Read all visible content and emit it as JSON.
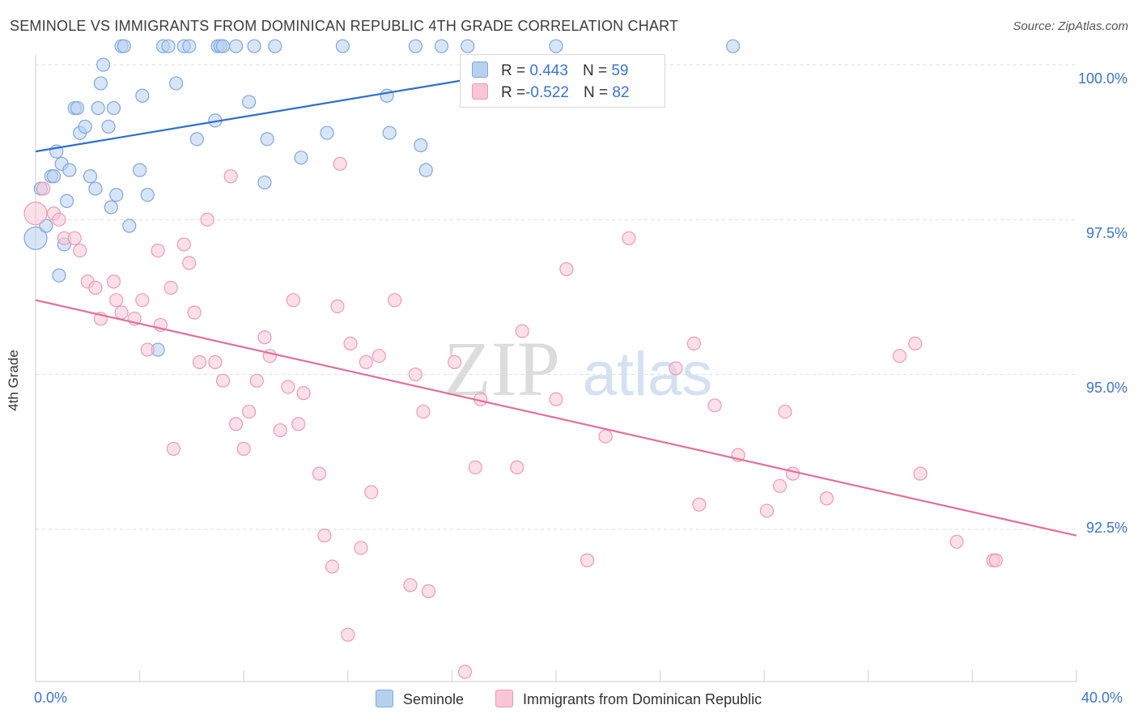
{
  "title": "SEMINOLE VS IMMIGRANTS FROM DOMINICAN REPUBLIC 4TH GRADE CORRELATION CHART",
  "source": "Source: ZipAtlas.com",
  "watermark": {
    "zip": "ZIP",
    "atlas": "atlas"
  },
  "legend": {
    "seminole": {
      "r_label": "R =",
      "r_value": " 0.443",
      "n_label": "N =",
      "n_value": "59"
    },
    "dominican": {
      "r_label": "R =",
      "r_value": "-0.522",
      "n_label": "N =",
      "n_value": "82"
    }
  },
  "colors": {
    "seminole_fill": "#b8d0f0",
    "seminole_stroke": "#7ea7df",
    "seminole_line": "#2f6fcb",
    "dominican_fill": "#f8c6d6",
    "dominican_stroke": "#ec9ab6",
    "dominican_line": "#e36f9a",
    "tick_label": "#3b75c9",
    "grid": "#dddddd"
  },
  "chart_data": {
    "type": "scatter",
    "xlabel": "",
    "ylabel": "4th Grade",
    "xlim": [
      0,
      40
    ],
    "ylim": [
      90.0,
      100.25
    ],
    "x_tick_labels": [
      "0.0%",
      "40.0%"
    ],
    "y_ticks": [
      92.5,
      95.0,
      97.5,
      100.0
    ],
    "y_tick_labels": [
      "92.5%",
      "95.0%",
      "97.5%",
      "100.0%"
    ],
    "grid": "horizontal dashed",
    "legend_placement": "bottom-center",
    "series": [
      {
        "name": "Seminole",
        "color": "#b8d0f0",
        "trend": {
          "x": [
            0,
            20
          ],
          "y": [
            98.6,
            100.0
          ]
        },
        "points": [
          {
            "x": 0.0,
            "y": 97.2,
            "big": true
          },
          {
            "x": 0.2,
            "y": 98.0
          },
          {
            "x": 0.4,
            "y": 97.4
          },
          {
            "x": 0.6,
            "y": 98.2
          },
          {
            "x": 0.7,
            "y": 98.2
          },
          {
            "x": 0.8,
            "y": 98.6
          },
          {
            "x": 0.9,
            "y": 96.6
          },
          {
            "x": 1.0,
            "y": 98.4
          },
          {
            "x": 1.1,
            "y": 97.1
          },
          {
            "x": 1.2,
            "y": 97.8
          },
          {
            "x": 1.3,
            "y": 98.3
          },
          {
            "x": 1.5,
            "y": 99.3
          },
          {
            "x": 1.6,
            "y": 99.3
          },
          {
            "x": 1.7,
            "y": 98.9
          },
          {
            "x": 1.9,
            "y": 99.0
          },
          {
            "x": 2.1,
            "y": 98.2
          },
          {
            "x": 2.3,
            "y": 98.0
          },
          {
            "x": 2.4,
            "y": 99.3
          },
          {
            "x": 2.5,
            "y": 99.7
          },
          {
            "x": 2.6,
            "y": 100.0
          },
          {
            "x": 2.8,
            "y": 99.0
          },
          {
            "x": 2.9,
            "y": 97.7
          },
          {
            "x": 3.0,
            "y": 99.3
          },
          {
            "x": 3.1,
            "y": 97.9
          },
          {
            "x": 3.3,
            "y": 100.3
          },
          {
            "x": 3.4,
            "y": 100.3
          },
          {
            "x": 3.6,
            "y": 97.4
          },
          {
            "x": 4.0,
            "y": 98.3
          },
          {
            "x": 4.1,
            "y": 99.5
          },
          {
            "x": 4.3,
            "y": 97.9
          },
          {
            "x": 4.7,
            "y": 95.4
          },
          {
            "x": 4.9,
            "y": 100.3
          },
          {
            "x": 5.1,
            "y": 100.3
          },
          {
            "x": 5.4,
            "y": 99.7
          },
          {
            "x": 5.7,
            "y": 100.3
          },
          {
            "x": 5.9,
            "y": 100.3
          },
          {
            "x": 6.2,
            "y": 98.8
          },
          {
            "x": 6.9,
            "y": 99.1
          },
          {
            "x": 7.0,
            "y": 100.3
          },
          {
            "x": 7.1,
            "y": 100.3
          },
          {
            "x": 7.2,
            "y": 100.3
          },
          {
            "x": 7.7,
            "y": 100.3
          },
          {
            "x": 8.2,
            "y": 99.4
          },
          {
            "x": 8.4,
            "y": 100.3
          },
          {
            "x": 8.8,
            "y": 98.1
          },
          {
            "x": 8.9,
            "y": 98.8
          },
          {
            "x": 9.2,
            "y": 100.3
          },
          {
            "x": 10.2,
            "y": 98.5
          },
          {
            "x": 11.2,
            "y": 98.9
          },
          {
            "x": 11.8,
            "y": 100.3
          },
          {
            "x": 13.5,
            "y": 99.5
          },
          {
            "x": 13.6,
            "y": 98.9
          },
          {
            "x": 14.6,
            "y": 100.3
          },
          {
            "x": 14.8,
            "y": 98.7
          },
          {
            "x": 15.0,
            "y": 98.3
          },
          {
            "x": 15.6,
            "y": 100.3
          },
          {
            "x": 16.6,
            "y": 100.3
          },
          {
            "x": 20.0,
            "y": 100.3
          },
          {
            "x": 26.8,
            "y": 100.3
          }
        ]
      },
      {
        "name": "Immigrants from Dominican Republic",
        "color": "#f8c6d6",
        "trend": {
          "x": [
            0,
            40
          ],
          "y": [
            96.2,
            92.4
          ]
        },
        "points": [
          {
            "x": 0.0,
            "y": 97.6,
            "big": true
          },
          {
            "x": 0.3,
            "y": 98.0
          },
          {
            "x": 0.7,
            "y": 97.6
          },
          {
            "x": 0.9,
            "y": 97.5
          },
          {
            "x": 1.1,
            "y": 97.2
          },
          {
            "x": 1.5,
            "y": 97.2
          },
          {
            "x": 1.7,
            "y": 97.0
          },
          {
            "x": 2.0,
            "y": 96.5
          },
          {
            "x": 2.3,
            "y": 96.4
          },
          {
            "x": 2.5,
            "y": 95.9
          },
          {
            "x": 3.0,
            "y": 96.5
          },
          {
            "x": 3.1,
            "y": 96.2
          },
          {
            "x": 3.3,
            "y": 96.0
          },
          {
            "x": 3.8,
            "y": 95.9
          },
          {
            "x": 4.1,
            "y": 96.2
          },
          {
            "x": 4.3,
            "y": 95.4
          },
          {
            "x": 4.7,
            "y": 97.0
          },
          {
            "x": 4.8,
            "y": 95.8
          },
          {
            "x": 5.2,
            "y": 96.4
          },
          {
            "x": 5.3,
            "y": 93.8
          },
          {
            "x": 5.7,
            "y": 97.1
          },
          {
            "x": 5.9,
            "y": 96.8
          },
          {
            "x": 6.1,
            "y": 96.0
          },
          {
            "x": 6.3,
            "y": 95.2
          },
          {
            "x": 6.6,
            "y": 97.5
          },
          {
            "x": 6.9,
            "y": 95.2
          },
          {
            "x": 7.2,
            "y": 94.9
          },
          {
            "x": 7.5,
            "y": 98.2
          },
          {
            "x": 7.7,
            "y": 94.2
          },
          {
            "x": 8.0,
            "y": 93.8
          },
          {
            "x": 8.2,
            "y": 94.4
          },
          {
            "x": 8.5,
            "y": 94.9
          },
          {
            "x": 8.8,
            "y": 95.6
          },
          {
            "x": 9.0,
            "y": 95.3
          },
          {
            "x": 9.4,
            "y": 94.1
          },
          {
            "x": 9.7,
            "y": 94.8
          },
          {
            "x": 9.9,
            "y": 96.2
          },
          {
            "x": 10.1,
            "y": 94.2
          },
          {
            "x": 10.3,
            "y": 94.7
          },
          {
            "x": 10.9,
            "y": 93.4
          },
          {
            "x": 11.1,
            "y": 92.4
          },
          {
            "x": 11.4,
            "y": 91.9
          },
          {
            "x": 11.6,
            "y": 96.1
          },
          {
            "x": 11.7,
            "y": 98.4
          },
          {
            "x": 12.0,
            "y": 90.8
          },
          {
            "x": 12.1,
            "y": 95.5
          },
          {
            "x": 12.5,
            "y": 92.2
          },
          {
            "x": 12.7,
            "y": 95.2
          },
          {
            "x": 12.9,
            "y": 93.1
          },
          {
            "x": 13.2,
            "y": 95.3
          },
          {
            "x": 13.8,
            "y": 96.2
          },
          {
            "x": 14.4,
            "y": 91.6
          },
          {
            "x": 14.6,
            "y": 95.0
          },
          {
            "x": 14.9,
            "y": 94.4
          },
          {
            "x": 15.1,
            "y": 91.5
          },
          {
            "x": 16.1,
            "y": 95.2
          },
          {
            "x": 16.5,
            "y": 90.2
          },
          {
            "x": 16.9,
            "y": 93.5
          },
          {
            "x": 17.1,
            "y": 94.6
          },
          {
            "x": 18.5,
            "y": 93.5
          },
          {
            "x": 18.7,
            "y": 95.7
          },
          {
            "x": 20.0,
            "y": 94.6
          },
          {
            "x": 20.4,
            "y": 96.7
          },
          {
            "x": 21.2,
            "y": 92.0
          },
          {
            "x": 21.9,
            "y": 94.0
          },
          {
            "x": 22.8,
            "y": 97.2
          },
          {
            "x": 24.6,
            "y": 95.1
          },
          {
            "x": 25.3,
            "y": 95.5
          },
          {
            "x": 25.5,
            "y": 92.9
          },
          {
            "x": 26.1,
            "y": 94.5
          },
          {
            "x": 27.0,
            "y": 93.7
          },
          {
            "x": 28.1,
            "y": 92.8
          },
          {
            "x": 28.6,
            "y": 93.2
          },
          {
            "x": 28.8,
            "y": 94.4
          },
          {
            "x": 29.1,
            "y": 93.4
          },
          {
            "x": 30.4,
            "y": 93.0
          },
          {
            "x": 33.2,
            "y": 95.3
          },
          {
            "x": 33.8,
            "y": 95.5
          },
          {
            "x": 34.0,
            "y": 93.4
          },
          {
            "x": 35.4,
            "y": 92.3
          },
          {
            "x": 36.8,
            "y": 92.0
          },
          {
            "x": 36.9,
            "y": 92.0
          }
        ]
      }
    ]
  }
}
